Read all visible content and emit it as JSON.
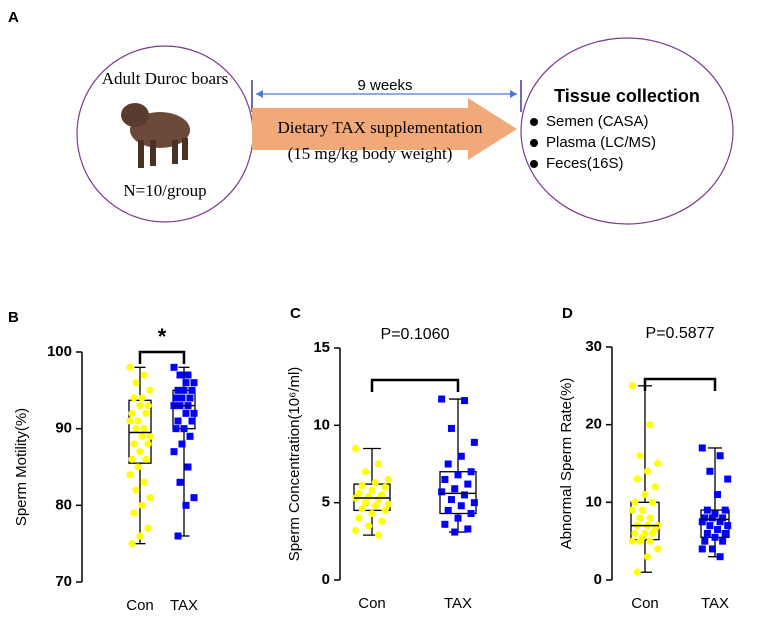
{
  "diagram": {
    "label": "A",
    "left_title": "Adult Duroc boars",
    "left_count": "N=10/group",
    "duration": "9 weeks",
    "treatment": [
      "Dietary TAX supplementation",
      "(15 mg/kg body weight)"
    ],
    "right_title": "Tissue collection",
    "right_items": [
      "Semen (CASA)",
      "Plasma (LC/MS)",
      "Feces(16S)"
    ]
  },
  "chart_data": [
    {
      "type": "box",
      "label": "B",
      "ylabel": "Sperm Motility(%)",
      "annotation": "*",
      "categories": [
        "Con",
        "TAX"
      ],
      "ylim": [
        70,
        100
      ],
      "yticks": [
        70,
        80,
        90,
        100
      ],
      "boxes": [
        {
          "color": "#ffff00",
          "marker": "circle",
          "min": 75,
          "q1": 85.5,
          "median": 89.5,
          "q3": 93.7,
          "max": 98,
          "points": [
            98,
            97,
            96,
            95,
            94,
            94,
            93,
            93,
            92,
            92,
            91,
            91,
            90,
            90,
            89,
            89,
            88,
            88,
            87,
            86,
            86,
            85,
            84,
            83,
            82,
            81,
            80,
            79,
            77,
            76,
            75
          ]
        },
        {
          "color": "#0000ff",
          "marker": "square",
          "min": 76,
          "q1": 90,
          "median": 93,
          "q3": 95,
          "max": 98,
          "points": [
            98,
            97,
            97,
            96,
            96,
            95,
            95,
            95,
            94,
            94,
            94,
            93,
            93,
            93,
            92,
            92,
            91,
            91,
            90,
            90,
            89,
            88,
            87,
            85,
            83,
            81,
            80,
            76
          ]
        }
      ]
    },
    {
      "type": "box",
      "label": "C",
      "ylabel": "Sperm Concentration(10⁶/ml)",
      "annotation": "P=0.1060",
      "categories": [
        "Con",
        "TAX"
      ],
      "ylim": [
        0,
        15
      ],
      "yticks": [
        0,
        5,
        10,
        15
      ],
      "boxes": [
        {
          "color": "#ffff00",
          "marker": "circle",
          "min": 2.9,
          "q1": 4.5,
          "median": 5.3,
          "q3": 6.2,
          "max": 8.5,
          "points": [
            8.5,
            7.5,
            7.0,
            6.5,
            6.3,
            6.1,
            6.0,
            5.8,
            5.6,
            5.5,
            5.4,
            5.3,
            5.2,
            5.0,
            4.9,
            4.8,
            4.6,
            4.5,
            4.3,
            4.0,
            3.8,
            3.5,
            3.2,
            2.9
          ]
        },
        {
          "color": "#0000ff",
          "marker": "square",
          "min": 3.1,
          "q1": 4.3,
          "median": 5.6,
          "q3": 7.0,
          "max": 11.7,
          "points": [
            11.7,
            11.6,
            9.8,
            8.9,
            8.0,
            7.5,
            7.0,
            6.8,
            6.5,
            6.2,
            5.9,
            5.7,
            5.5,
            5.2,
            5.0,
            4.8,
            4.5,
            4.3,
            4.0,
            3.6,
            3.3,
            3.1
          ]
        }
      ]
    },
    {
      "type": "box",
      "label": "D",
      "ylabel": "Abnormal Sperm Rate(%)",
      "annotation": "P=0.5877",
      "categories": [
        "Con",
        "TAX"
      ],
      "ylim": [
        0,
        30
      ],
      "yticks": [
        0,
        10,
        20,
        30
      ],
      "boxes": [
        {
          "color": "#ffff00",
          "marker": "circle",
          "min": 1,
          "q1": 5.2,
          "median": 7,
          "q3": 10,
          "max": 25,
          "points": [
            25,
            20,
            16,
            15,
            14,
            13,
            12,
            11,
            10,
            10,
            9,
            9,
            8,
            8,
            7,
            7,
            7,
            6.5,
            6,
            6,
            6,
            5.5,
            5,
            5,
            5,
            4,
            3,
            1
          ]
        },
        {
          "color": "#0000ff",
          "marker": "square",
          "min": 3,
          "q1": 5.5,
          "median": 7.8,
          "q3": 9,
          "max": 17,
          "points": [
            17,
            16,
            14,
            13,
            11,
            9,
            9,
            8.5,
            8,
            8,
            8,
            7.5,
            7.5,
            7,
            7,
            6.5,
            6,
            6,
            5.5,
            5,
            5,
            4,
            4,
            3
          ]
        }
      ]
    }
  ]
}
